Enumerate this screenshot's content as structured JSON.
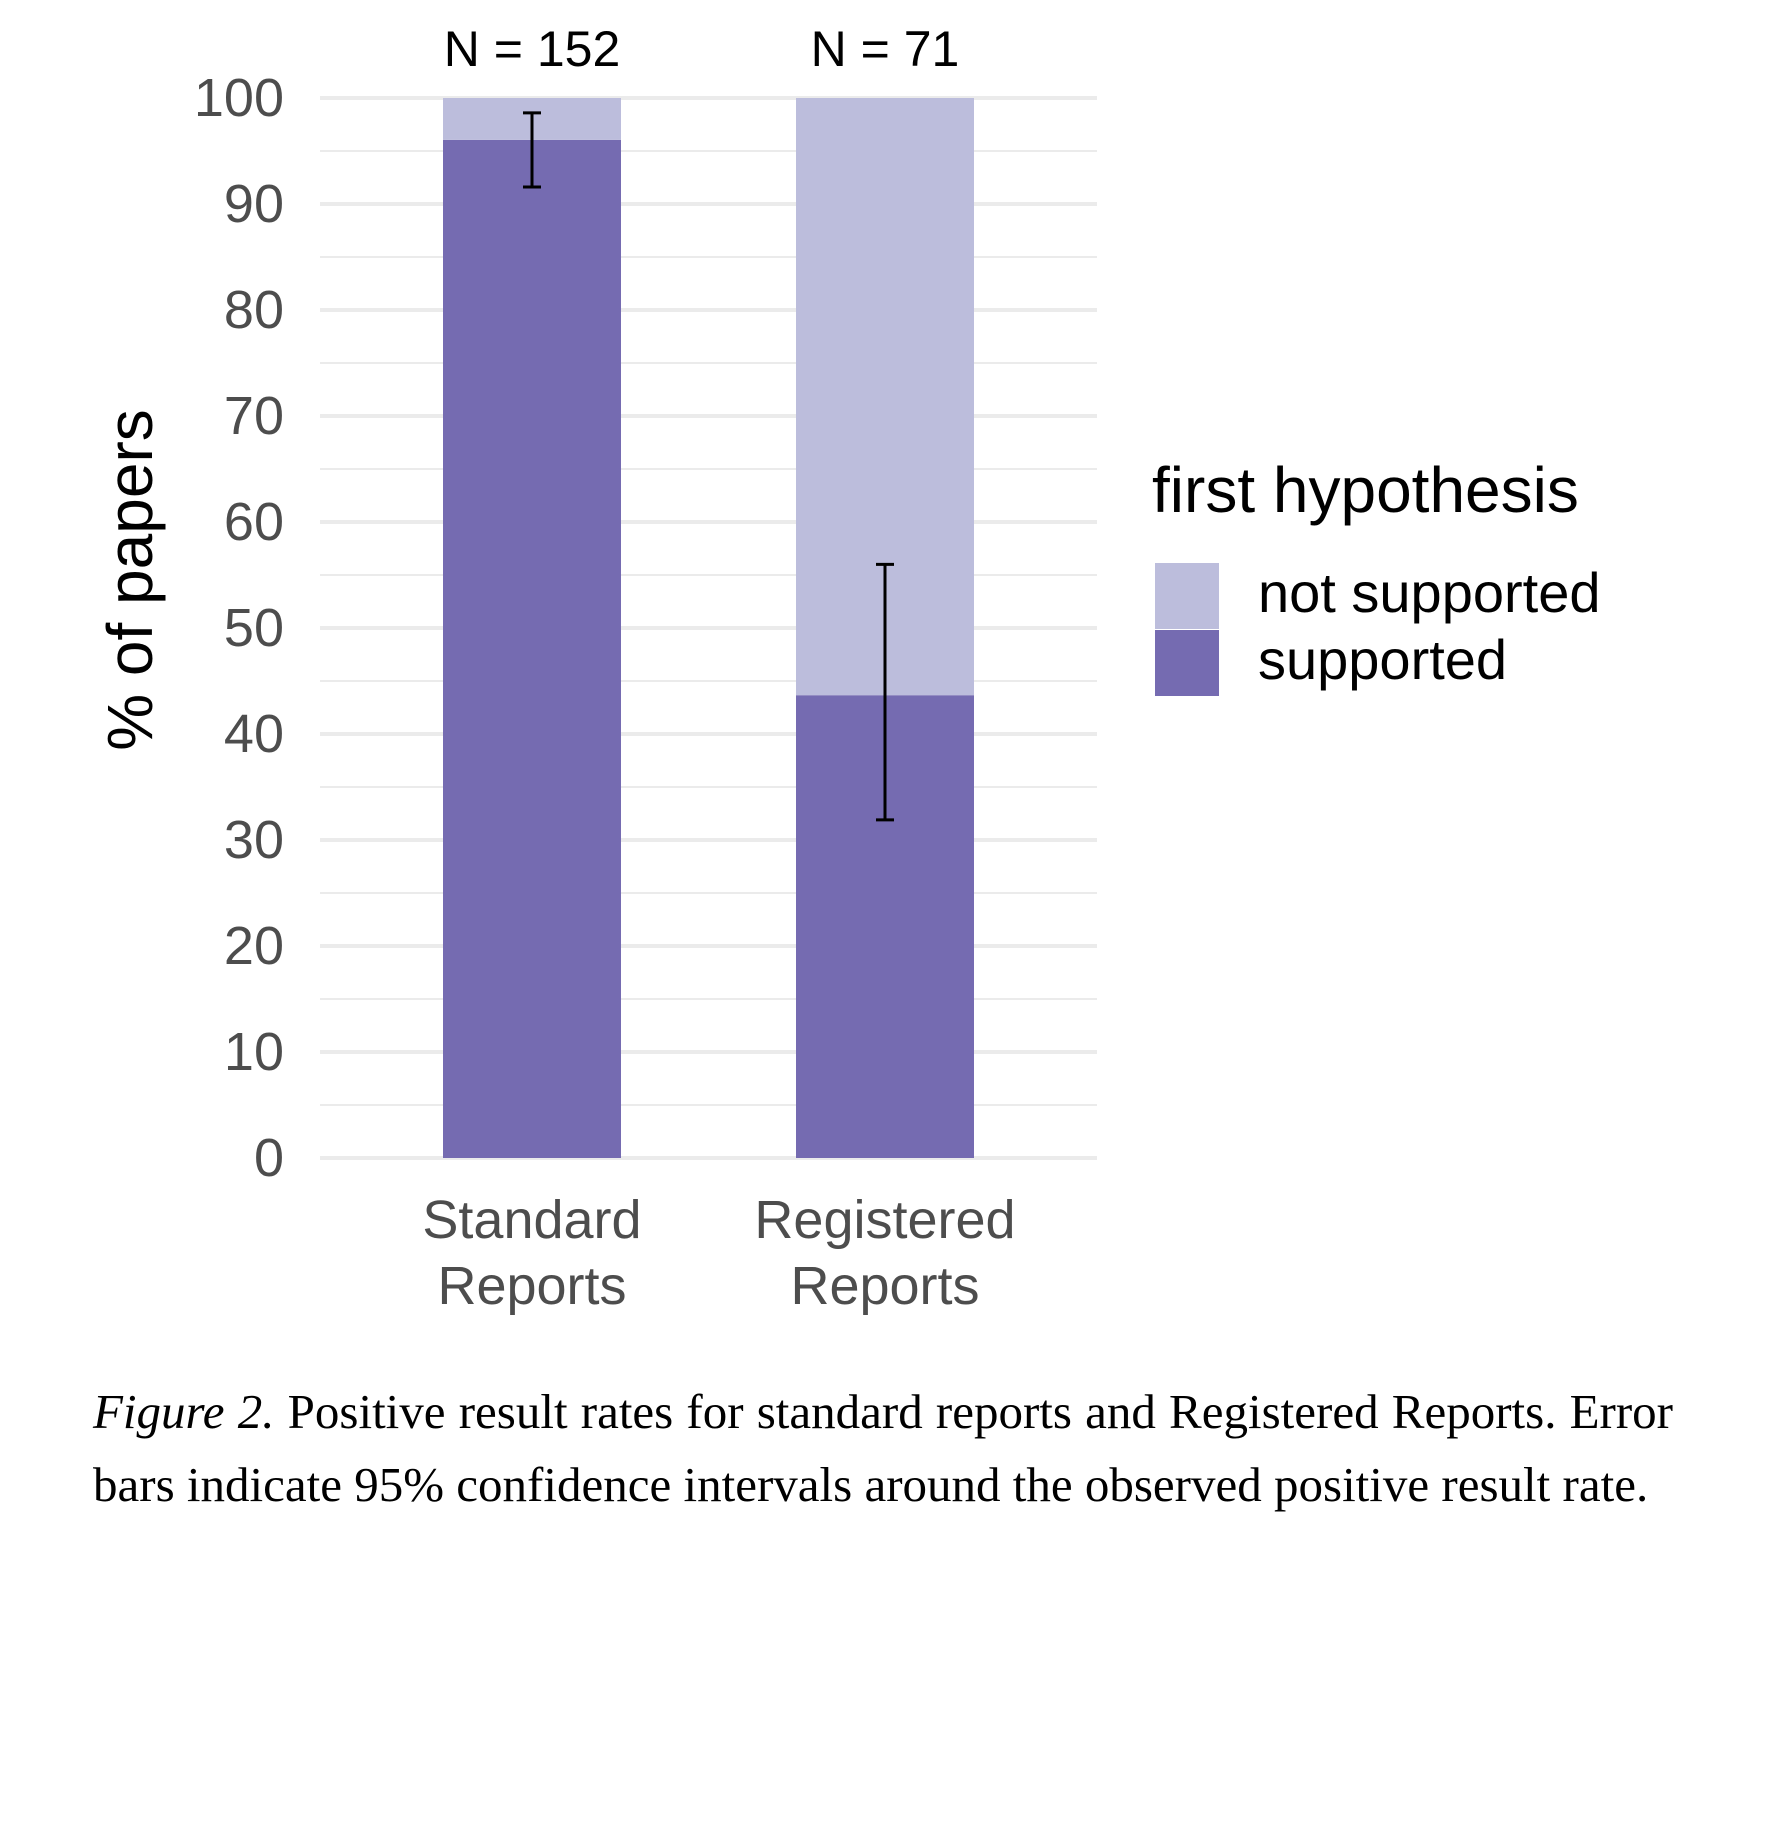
{
  "chart_data": {
    "type": "bar",
    "stacked": true,
    "categories": [
      "Standard\nReports",
      "Registered\nReports"
    ],
    "category_top_labels": [
      "N = 152",
      "N = 71"
    ],
    "series": [
      {
        "name": "supported",
        "values": [
          96.05,
          43.66
        ],
        "color": "#756bb1"
      },
      {
        "name": "not supported",
        "values": [
          3.95,
          56.34
        ],
        "color": "#bcbddc"
      }
    ],
    "error_bars": [
      {
        "category": "Standard\nReports",
        "low": 91.6,
        "high": 98.6
      },
      {
        "category": "Registered\nReports",
        "low": 31.9,
        "high": 56.0
      }
    ],
    "title": "",
    "xlabel": "",
    "ylabel": "% of papers",
    "ylim": [
      0,
      100
    ],
    "yticks": [
      0,
      10,
      20,
      30,
      40,
      50,
      60,
      70,
      80,
      90,
      100
    ],
    "grid": true,
    "legend": {
      "title": "first hypothesis",
      "placement": "right",
      "entries": [
        "not supported",
        "supported"
      ]
    }
  },
  "caption": {
    "label": "Figure 2.",
    "text": " Positive result rates for standard reports and Registered Reports. Error bars indicate 95% confidence intervals around the observed positive result rate."
  }
}
